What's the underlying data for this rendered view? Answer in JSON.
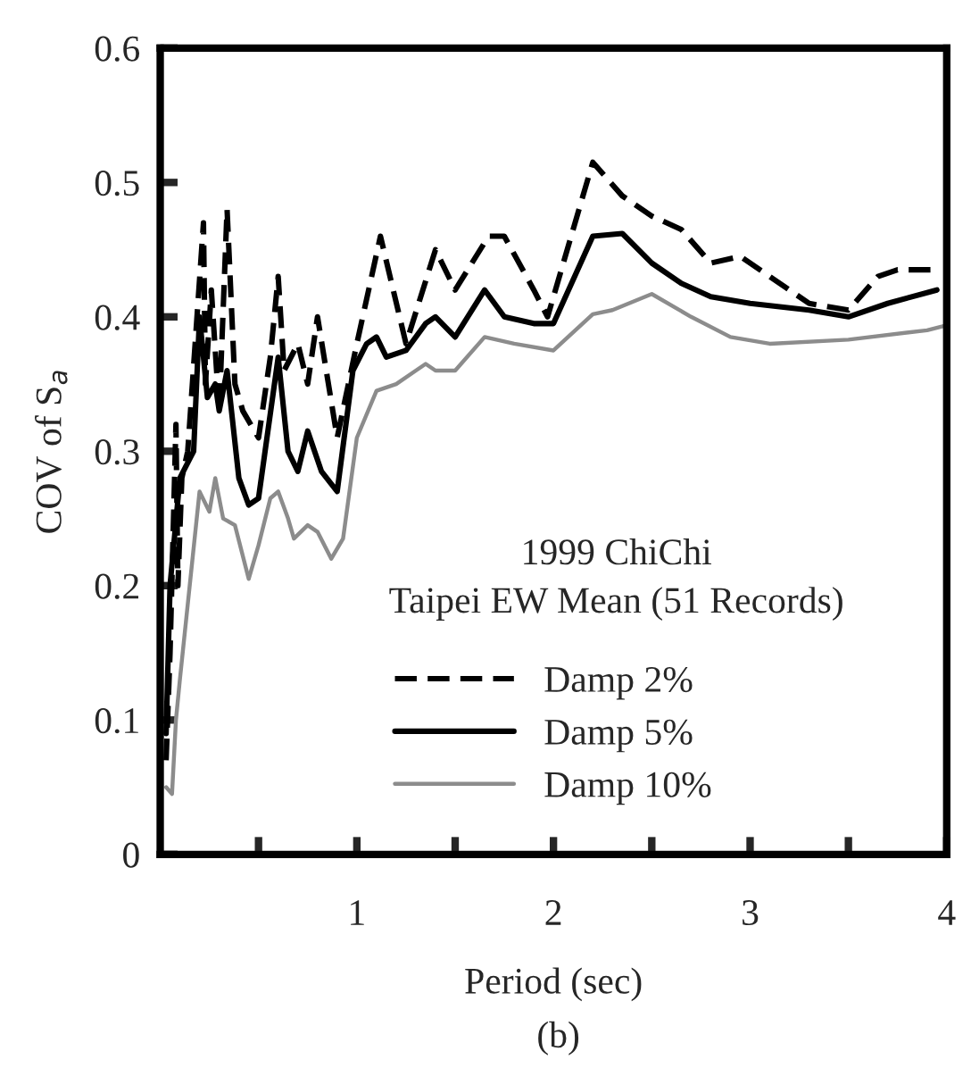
{
  "chart_data": {
    "type": "line",
    "xlabel": "Period (sec)",
    "ylabel": "COV of S$_{a}$",
    "annotations": [
      "1999 ChiChi",
      "Taipei EW Mean (51 Records)",
      "(b)"
    ],
    "xlim": [
      0,
      4
    ],
    "ylim": [
      0,
      0.6
    ],
    "xticks": [
      {
        "value": 0.5,
        "label": null
      },
      1,
      {
        "value": 1.5,
        "label": null
      },
      2,
      {
        "value": 2.5,
        "label": null
      },
      3,
      {
        "value": 3.5,
        "label": null
      },
      4
    ],
    "yticks": [
      0,
      0.1,
      0.2,
      0.3,
      0.4,
      0.5,
      0.6
    ],
    "grid": false,
    "legend": "bottom",
    "marker": "none",
    "series": [
      {
        "name": "Damp 2%",
        "color": "#000000",
        "line_style": "dashed",
        "x": [
          0.03,
          0.05,
          0.08,
          0.09,
          0.11,
          0.14,
          0.22,
          0.23,
          0.26,
          0.3,
          0.34,
          0.38,
          0.42,
          0.5,
          0.56,
          0.6,
          0.63,
          0.7,
          0.75,
          0.8,
          0.9,
          1.0,
          1.12,
          1.25,
          1.4,
          1.5,
          1.67,
          1.75,
          1.9,
          1.97,
          2.2,
          2.35,
          2.5,
          2.65,
          2.8,
          2.95,
          3.1,
          3.3,
          3.5,
          3.65,
          3.75,
          3.95
        ],
        "values": [
          0.07,
          0.15,
          0.32,
          0.2,
          0.28,
          0.3,
          0.47,
          0.35,
          0.42,
          0.33,
          0.48,
          0.35,
          0.33,
          0.31,
          0.37,
          0.43,
          0.36,
          0.38,
          0.35,
          0.4,
          0.31,
          0.38,
          0.46,
          0.38,
          0.45,
          0.42,
          0.46,
          0.46,
          0.42,
          0.4,
          0.515,
          0.49,
          0.475,
          0.465,
          0.44,
          0.445,
          0.43,
          0.41,
          0.405,
          0.43,
          0.435,
          0.435
        ]
      },
      {
        "name": "Damp 5%",
        "color": "#000000",
        "line_style": "solid",
        "x": [
          0.03,
          0.05,
          0.1,
          0.17,
          0.2,
          0.24,
          0.28,
          0.3,
          0.34,
          0.4,
          0.45,
          0.5,
          0.6,
          0.65,
          0.7,
          0.75,
          0.82,
          0.9,
          0.98,
          1.05,
          1.1,
          1.15,
          1.25,
          1.35,
          1.4,
          1.5,
          1.65,
          1.75,
          1.9,
          2.0,
          2.2,
          2.35,
          2.5,
          2.65,
          2.8,
          3.0,
          3.3,
          3.5,
          3.7,
          3.95
        ],
        "values": [
          0.09,
          0.2,
          0.28,
          0.3,
          0.4,
          0.34,
          0.35,
          0.33,
          0.36,
          0.28,
          0.26,
          0.265,
          0.37,
          0.3,
          0.285,
          0.315,
          0.285,
          0.27,
          0.36,
          0.38,
          0.385,
          0.37,
          0.375,
          0.395,
          0.4,
          0.385,
          0.42,
          0.4,
          0.395,
          0.395,
          0.46,
          0.462,
          0.44,
          0.425,
          0.415,
          0.41,
          0.405,
          0.4,
          0.41,
          0.42
        ]
      },
      {
        "name": "Damp 10%",
        "color": "#8c8c8c",
        "line_style": "solid",
        "x": [
          0.03,
          0.06,
          0.08,
          0.1,
          0.15,
          0.2,
          0.25,
          0.28,
          0.32,
          0.38,
          0.45,
          0.5,
          0.56,
          0.6,
          0.65,
          0.68,
          0.75,
          0.8,
          0.87,
          0.93,
          1.0,
          1.1,
          1.2,
          1.3,
          1.35,
          1.4,
          1.5,
          1.65,
          1.8,
          2.0,
          2.2,
          2.3,
          2.5,
          2.7,
          2.9,
          3.1,
          3.5,
          3.9,
          3.98
        ],
        "values": [
          0.05,
          0.045,
          0.1,
          0.13,
          0.2,
          0.27,
          0.255,
          0.28,
          0.25,
          0.245,
          0.205,
          0.23,
          0.265,
          0.27,
          0.25,
          0.235,
          0.245,
          0.24,
          0.22,
          0.235,
          0.31,
          0.345,
          0.35,
          0.36,
          0.365,
          0.36,
          0.36,
          0.385,
          0.38,
          0.375,
          0.402,
          0.405,
          0.417,
          0.4,
          0.385,
          0.38,
          0.383,
          0.39,
          0.393
        ]
      }
    ]
  }
}
